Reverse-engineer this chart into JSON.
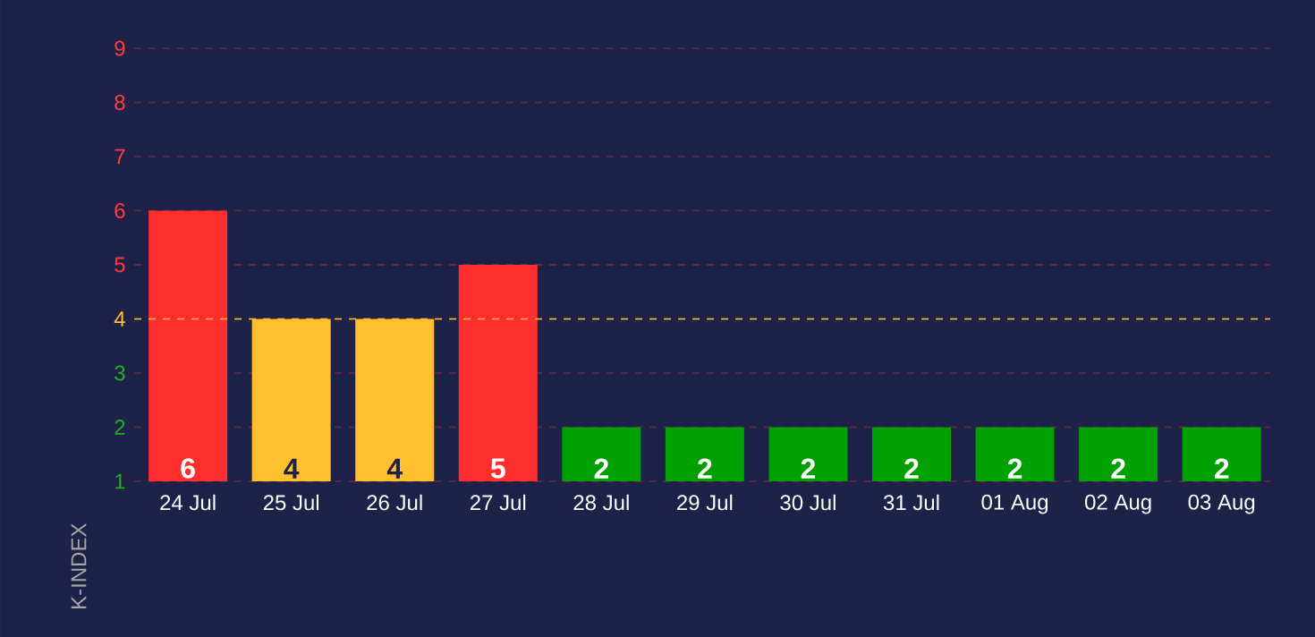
{
  "chart_data": {
    "type": "bar",
    "ylabel": "K-INDEX",
    "categories": [
      "24 Jul",
      "25 Jul",
      "26 Jul",
      "27 Jul",
      "28 Jul",
      "29 Jul",
      "30 Jul",
      "31 Jul",
      "01 Aug",
      "02 Aug",
      "03 Aug"
    ],
    "values": [
      6,
      4,
      4,
      5,
      2,
      2,
      2,
      2,
      2,
      2,
      2
    ],
    "colors": [
      "#ff2e2e",
      "#ffbf2e",
      "#ffbf2e",
      "#ff2e2e",
      "#00a000",
      "#00a000",
      "#00a000",
      "#00a000",
      "#00a000",
      "#00a000",
      "#00a000"
    ],
    "ylim": [
      1,
      9
    ],
    "yticks": [
      1,
      2,
      3,
      4,
      5,
      6,
      7,
      8,
      9
    ],
    "ref_lines": [
      {
        "axis": "y",
        "value": 4,
        "color": "#ffbf2e",
        "line_style": "dashed"
      }
    ],
    "grid": "y",
    "data_labels": true
  }
}
